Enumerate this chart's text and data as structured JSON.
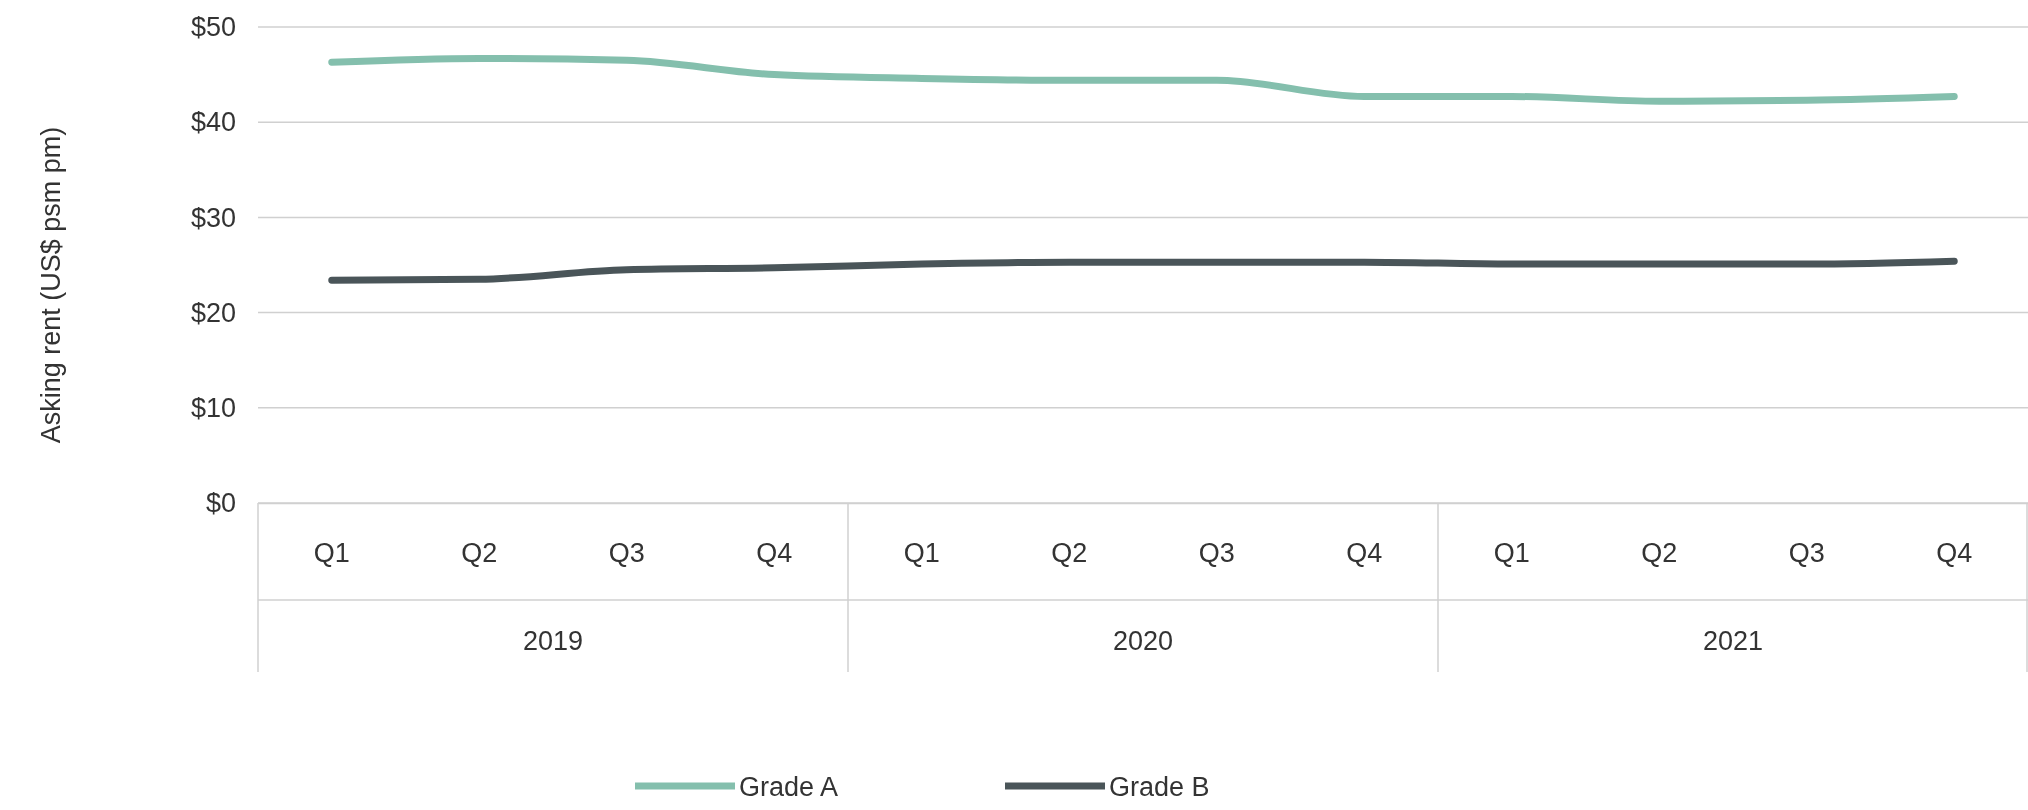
{
  "chart_data": {
    "type": "line",
    "ylabel": "Asking rent (US$ psm pm)",
    "categories": [
      "Q1",
      "Q2",
      "Q3",
      "Q4",
      "Q1",
      "Q2",
      "Q3",
      "Q4",
      "Q1",
      "Q2",
      "Q3",
      "Q4"
    ],
    "annotations": [
      "2019",
      "2020",
      "2021"
    ],
    "series": [
      {
        "name": "Grade A",
        "color": "#84bfad",
        "values": [
          46.3,
          46.7,
          46.5,
          45.0,
          44.6,
          44.4,
          44.4,
          42.7,
          42.7,
          42.2,
          42.3,
          42.7
        ]
      },
      {
        "name": "Grade B",
        "color": "#4a5559",
        "values": [
          23.4,
          23.5,
          24.5,
          24.7,
          25.1,
          25.3,
          25.3,
          25.3,
          25.1,
          25.1,
          25.1,
          25.4
        ]
      }
    ],
    "ylim": [
      0,
      50
    ],
    "yticks": [
      {
        "value": 0,
        "label": "$0"
      },
      {
        "value": 10,
        "label": "$10"
      },
      {
        "value": 20,
        "label": "$20"
      },
      {
        "value": 30,
        "label": "$30"
      },
      {
        "value": 40,
        "label": "$40"
      },
      {
        "value": 50,
        "label": "$50"
      }
    ],
    "grid": "y",
    "legend": "bottom",
    "marker": "none",
    "line_style": "solid"
  }
}
